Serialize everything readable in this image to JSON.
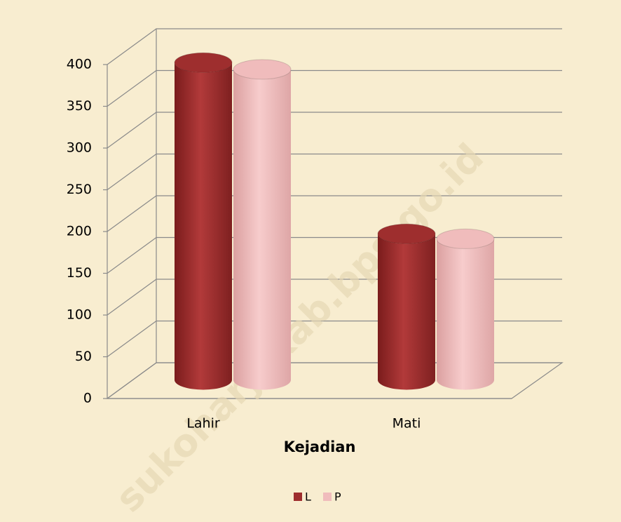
{
  "chart_data": {
    "type": "bar",
    "three_d": true,
    "xlabel": "Kejadian",
    "categories": [
      "Lahir",
      "Mati"
    ],
    "series": [
      {
        "name": "L",
        "color": "#9e2e2e",
        "values": [
          380,
          175
        ]
      },
      {
        "name": "P",
        "color": "#f0bcbc",
        "values": [
          372,
          169
        ]
      }
    ],
    "ylim": [
      0,
      400
    ],
    "yticks": [
      0,
      50,
      100,
      150,
      200,
      250,
      300,
      350,
      400
    ],
    "grid": true,
    "legend": "bottom",
    "watermark": "sukoharjokab.bps.go.id"
  }
}
